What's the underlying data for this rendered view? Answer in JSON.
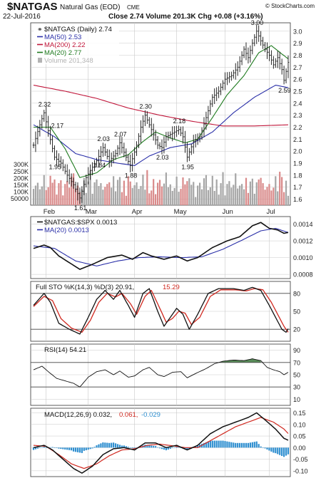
{
  "header": {
    "symbol": "$NATGAS",
    "name": "Natural Gas (EOD)",
    "exchange": "CME",
    "watermark": "© StockCharts.com",
    "date": "22-Jul-2016",
    "quote": "Close 2.74  Volume 201.3K  Chg +0.08 (+3.16%)"
  },
  "colors": {
    "price": "#111111",
    "ma50": "#2a2fa8",
    "ma200": "#c0163a",
    "ma20": "#1e7a1e",
    "volume": "#b3b3b3",
    "stoK": "#111111",
    "stoD": "#d0281f",
    "rsi": "#111111",
    "rsiFill": "#2f6f2f",
    "macd": "#111111",
    "signal": "#d0281f",
    "hist": "#2f8fd0",
    "grid": "#c8c8c8",
    "axisText": "#222222",
    "background": "#ffffff"
  },
  "chart_data": [
    {
      "type": "line",
      "panel": "price",
      "legend": [
        {
          "label": "$NATGAS (Daily) 2.74",
          "color": "#111111"
        },
        {
          "label": "MA(50) 2.53",
          "color": "#2a2fa8"
        },
        {
          "label": "MA(200) 2.22",
          "color": "#c0163a"
        },
        {
          "label": "MA(20) 2.77",
          "color": "#1e7a1e"
        },
        {
          "label": "Volume 201,348",
          "color": "#b3b3b3"
        }
      ],
      "x_labels": [
        "Feb",
        "Mar",
        "Apr",
        "May",
        "Jun",
        "Jul"
      ],
      "x_label_positions": [
        6,
        26,
        48,
        68,
        91,
        112
      ],
      "n": 122,
      "y_ticks": [
        1.6,
        1.7,
        1.8,
        1.9,
        2.0,
        2.1,
        2.2,
        2.3,
        2.4,
        2.5,
        2.6,
        2.7,
        2.8,
        2.9,
        3.0
      ],
      "ylim": [
        1.55,
        3.07
      ],
      "volume_ticks": [
        "300K",
        "250K",
        "200K",
        "150K",
        "100K",
        "50000"
      ],
      "volume_tick_values": [
        300000,
        250000,
        200000,
        150000,
        100000,
        50000
      ],
      "volume_max": 330000,
      "price_keypoints": [
        [
          0,
          2.05
        ],
        [
          3,
          2.22
        ],
        [
          5,
          2.32
        ],
        [
          7,
          2.17
        ],
        [
          10,
          1.95
        ],
        [
          13,
          1.9
        ],
        [
          16,
          1.8
        ],
        [
          19,
          1.72
        ],
        [
          22,
          1.61
        ],
        [
          25,
          1.78
        ],
        [
          27,
          1.84
        ],
        [
          30,
          1.92
        ],
        [
          33,
          2.03
        ],
        [
          36,
          1.92
        ],
        [
          39,
          1.98
        ],
        [
          41,
          2.07
        ],
        [
          44,
          1.95
        ],
        [
          46,
          1.88
        ],
        [
          49,
          2.05
        ],
        [
          51,
          2.2
        ],
        [
          53,
          2.3
        ],
        [
          56,
          2.18
        ],
        [
          59,
          2.05
        ],
        [
          61,
          2.03
        ],
        [
          63,
          2.12
        ],
        [
          66,
          2.15
        ],
        [
          69,
          2.18
        ],
        [
          71,
          2.12
        ],
        [
          73,
          1.95
        ],
        [
          76,
          2.08
        ],
        [
          79,
          2.12
        ],
        [
          82,
          2.28
        ],
        [
          85,
          2.45
        ],
        [
          88,
          2.5
        ],
        [
          91,
          2.6
        ],
        [
          94,
          2.63
        ],
        [
          97,
          2.7
        ],
        [
          100,
          2.85
        ],
        [
          102,
          2.78
        ],
        [
          104,
          2.9
        ],
        [
          106,
          3.0
        ],
        [
          108,
          2.92
        ],
        [
          110,
          2.85
        ],
        [
          112,
          2.8
        ],
        [
          114,
          2.72
        ],
        [
          116,
          2.78
        ],
        [
          118,
          2.68
        ],
        [
          119,
          2.59
        ],
        [
          121,
          2.74
        ]
      ],
      "ma50_keypoints": [
        [
          0,
          2.22
        ],
        [
          10,
          2.12
        ],
        [
          20,
          1.98
        ],
        [
          30,
          1.93
        ],
        [
          40,
          1.9
        ],
        [
          48,
          1.88
        ],
        [
          55,
          1.96
        ],
        [
          65,
          2.03
        ],
        [
          75,
          2.06
        ],
        [
          85,
          2.16
        ],
        [
          95,
          2.32
        ],
        [
          105,
          2.45
        ],
        [
          115,
          2.55
        ],
        [
          121,
          2.53
        ]
      ],
      "ma200_keypoints": [
        [
          0,
          2.55
        ],
        [
          15,
          2.5
        ],
        [
          30,
          2.44
        ],
        [
          45,
          2.36
        ],
        [
          60,
          2.3
        ],
        [
          75,
          2.25
        ],
        [
          90,
          2.21
        ],
        [
          105,
          2.21
        ],
        [
          121,
          2.22
        ]
      ],
      "ma20_keypoints": [
        [
          0,
          2.2
        ],
        [
          8,
          2.2
        ],
        [
          15,
          2.02
        ],
        [
          22,
          1.78
        ],
        [
          30,
          1.82
        ],
        [
          38,
          1.93
        ],
        [
          45,
          1.97
        ],
        [
          52,
          2.08
        ],
        [
          58,
          2.16
        ],
        [
          65,
          2.11
        ],
        [
          72,
          2.07
        ],
        [
          78,
          2.1
        ],
        [
          85,
          2.28
        ],
        [
          92,
          2.47
        ],
        [
          100,
          2.63
        ],
        [
          107,
          2.82
        ],
        [
          113,
          2.88
        ],
        [
          118,
          2.81
        ],
        [
          121,
          2.77
        ]
      ],
      "annotations": [
        {
          "i": 5,
          "text": "2.32",
          "pos": "above"
        },
        {
          "i": 7,
          "text": "2.17",
          "pos": "right"
        },
        {
          "i": 10,
          "text": "1.95",
          "pos": "below"
        },
        {
          "i": 22,
          "text": "1.61",
          "pos": "below"
        },
        {
          "i": 27,
          "text": "1.84",
          "pos": "right"
        },
        {
          "i": 33,
          "text": "2.03",
          "pos": "above"
        },
        {
          "i": 41,
          "text": "2.07",
          "pos": "above"
        },
        {
          "i": 46,
          "text": "1.88",
          "pos": "below"
        },
        {
          "i": 53,
          "text": "2.30",
          "pos": "above"
        },
        {
          "i": 61,
          "text": "2.03",
          "pos": "below"
        },
        {
          "i": 69,
          "text": "2.18",
          "pos": "above"
        },
        {
          "i": 73,
          "text": "1.95",
          "pos": "below"
        },
        {
          "i": 106,
          "text": "3.00",
          "pos": "above"
        },
        {
          "i": 119,
          "text": "2.59",
          "pos": "below"
        }
      ],
      "title": "$NATGAS (Daily)"
    },
    {
      "type": "line",
      "panel": "ratio",
      "legend": [
        {
          "label": "$NATGAS:$SPX 0.0013",
          "color": "#111111"
        },
        {
          "label": "MA(20) 0.0013",
          "color": "#2a2fa8"
        }
      ],
      "y_ticks": [
        0.0008,
        0.001,
        0.0012,
        0.0014
      ],
      "y_tick_labels": [
        "0.0008",
        "0.0010",
        "0.0012",
        "0.0014"
      ],
      "ylim": [
        0.00075,
        0.00149
      ],
      "line_keypoints": [
        [
          0,
          0.00111
        ],
        [
          5,
          0.00115
        ],
        [
          8,
          0.00112
        ],
        [
          12,
          0.00102
        ],
        [
          17,
          0.00094
        ],
        [
          22,
          0.00086
        ],
        [
          28,
          0.00092
        ],
        [
          35,
          0.001
        ],
        [
          42,
          0.00103
        ],
        [
          47,
          0.00098
        ],
        [
          52,
          0.00106
        ],
        [
          56,
          0.00102
        ],
        [
          62,
          0.00098
        ],
        [
          68,
          0.00102
        ],
        [
          73,
          0.00096
        ],
        [
          78,
          0.001
        ],
        [
          85,
          0.00112
        ],
        [
          92,
          0.0012
        ],
        [
          98,
          0.00125
        ],
        [
          104,
          0.00138
        ],
        [
          108,
          0.00142
        ],
        [
          112,
          0.00135
        ],
        [
          116,
          0.00133
        ],
        [
          119,
          0.00129
        ],
        [
          121,
          0.0013
        ]
      ],
      "ma_keypoints": [
        [
          0,
          0.00114
        ],
        [
          10,
          0.00111
        ],
        [
          20,
          0.00096
        ],
        [
          30,
          0.0009
        ],
        [
          40,
          0.00096
        ],
        [
          50,
          0.001
        ],
        [
          60,
          0.00101
        ],
        [
          70,
          0.001
        ],
        [
          80,
          0.00101
        ],
        [
          90,
          0.0011
        ],
        [
          100,
          0.00122
        ],
        [
          108,
          0.00132
        ],
        [
          115,
          0.00135
        ],
        [
          121,
          0.0013
        ]
      ]
    },
    {
      "type": "line",
      "panel": "stochastic",
      "legend": [
        {
          "label": "Full STO %K(14,3) %D(3) 20.91,",
          "color": "#111111"
        },
        {
          "label": "15.29",
          "color": "#d0281f"
        }
      ],
      "y_ticks": [
        20,
        50,
        80
      ],
      "ylim": [
        0,
        100
      ],
      "k_keypoints": [
        [
          0,
          60
        ],
        [
          5,
          80
        ],
        [
          8,
          65
        ],
        [
          12,
          30
        ],
        [
          17,
          20
        ],
        [
          22,
          12
        ],
        [
          26,
          40
        ],
        [
          30,
          70
        ],
        [
          34,
          85
        ],
        [
          38,
          70
        ],
        [
          41,
          85
        ],
        [
          45,
          60
        ],
        [
          48,
          40
        ],
        [
          52,
          80
        ],
        [
          55,
          88
        ],
        [
          59,
          50
        ],
        [
          62,
          25
        ],
        [
          65,
          40
        ],
        [
          68,
          55
        ],
        [
          71,
          45
        ],
        [
          74,
          20
        ],
        [
          78,
          45
        ],
        [
          83,
          80
        ],
        [
          88,
          88
        ],
        [
          95,
          88
        ],
        [
          100,
          85
        ],
        [
          104,
          90
        ],
        [
          108,
          85
        ],
        [
          112,
          60
        ],
        [
          115,
          40
        ],
        [
          118,
          20
        ],
        [
          120,
          15
        ],
        [
          121,
          21
        ]
      ],
      "d_keypoints": [
        [
          0,
          58
        ],
        [
          5,
          75
        ],
        [
          9,
          68
        ],
        [
          13,
          38
        ],
        [
          18,
          22
        ],
        [
          23,
          15
        ],
        [
          27,
          35
        ],
        [
          31,
          65
        ],
        [
          35,
          80
        ],
        [
          39,
          74
        ],
        [
          42,
          80
        ],
        [
          46,
          63
        ],
        [
          49,
          45
        ],
        [
          53,
          75
        ],
        [
          56,
          85
        ],
        [
          60,
          55
        ],
        [
          63,
          32
        ],
        [
          66,
          38
        ],
        [
          69,
          50
        ],
        [
          72,
          47
        ],
        [
          75,
          28
        ],
        [
          79,
          40
        ],
        [
          84,
          75
        ],
        [
          89,
          86
        ],
        [
          96,
          86
        ],
        [
          101,
          84
        ],
        [
          105,
          88
        ],
        [
          109,
          86
        ],
        [
          113,
          65
        ],
        [
          116,
          45
        ],
        [
          119,
          25
        ],
        [
          121,
          15
        ]
      ]
    },
    {
      "type": "line",
      "panel": "rsi",
      "legend": [
        {
          "label": "RSI(14) 54.21",
          "color": "#111111"
        }
      ],
      "y_ticks": [
        10,
        30,
        50,
        70,
        90
      ],
      "ylim": [
        0,
        100
      ],
      "line_keypoints": [
        [
          0,
          58
        ],
        [
          4,
          64
        ],
        [
          7,
          55
        ],
        [
          11,
          44
        ],
        [
          15,
          40
        ],
        [
          19,
          36
        ],
        [
          22,
          30
        ],
        [
          26,
          46
        ],
        [
          30,
          55
        ],
        [
          34,
          58
        ],
        [
          38,
          50
        ],
        [
          41,
          56
        ],
        [
          45,
          46
        ],
        [
          48,
          48
        ],
        [
          52,
          58
        ],
        [
          55,
          62
        ],
        [
          59,
          50
        ],
        [
          62,
          47
        ],
        [
          66,
          54
        ],
        [
          70,
          55
        ],
        [
          73,
          45
        ],
        [
          77,
          52
        ],
        [
          82,
          60
        ],
        [
          86,
          68
        ],
        [
          90,
          72
        ],
        [
          95,
          74
        ],
        [
          100,
          73
        ],
        [
          104,
          76
        ],
        [
          108,
          73
        ],
        [
          111,
          62
        ],
        [
          114,
          58
        ],
        [
          117,
          55
        ],
        [
          119,
          50
        ],
        [
          121,
          54
        ]
      ]
    },
    {
      "type": "line",
      "panel": "macd",
      "legend": [
        {
          "label": "MACD(12,26,9) 0.032,",
          "color": "#111111"
        },
        {
          "label": "0.061,",
          "color": "#d0281f"
        },
        {
          "label": "-0.029",
          "color": "#2f8fd0"
        }
      ],
      "y_ticks": [
        -0.1,
        -0.05,
        0,
        0.05,
        0.1,
        0.15
      ],
      "y_tick_labels": [
        "-0.10",
        "-0.05",
        "0.00",
        "0.05",
        "0.10",
        "0.15"
      ],
      "ylim": [
        -0.125,
        0.17
      ],
      "macd_keypoints": [
        [
          0,
          0.0
        ],
        [
          5,
          0.01
        ],
        [
          9,
          -0.01
        ],
        [
          14,
          -0.05
        ],
        [
          19,
          -0.09
        ],
        [
          23,
          -0.11
        ],
        [
          28,
          -0.08
        ],
        [
          33,
          -0.03
        ],
        [
          38,
          -0.005
        ],
        [
          43,
          0.0
        ],
        [
          48,
          -0.01
        ],
        [
          53,
          0.02
        ],
        [
          58,
          0.02
        ],
        [
          63,
          0.0
        ],
        [
          68,
          0.01
        ],
        [
          73,
          -0.01
        ],
        [
          78,
          0.01
        ],
        [
          84,
          0.06
        ],
        [
          90,
          0.09
        ],
        [
          96,
          0.11
        ],
        [
          102,
          0.13
        ],
        [
          106,
          0.15
        ],
        [
          110,
          0.12
        ],
        [
          115,
          0.08
        ],
        [
          119,
          0.04
        ],
        [
          121,
          0.032
        ]
      ],
      "signal_keypoints": [
        [
          0,
          0.01
        ],
        [
          6,
          0.005
        ],
        [
          12,
          -0.03
        ],
        [
          18,
          -0.07
        ],
        [
          24,
          -0.09
        ],
        [
          30,
          -0.07
        ],
        [
          36,
          -0.035
        ],
        [
          42,
          -0.01
        ],
        [
          48,
          -0.005
        ],
        [
          54,
          0.01
        ],
        [
          60,
          0.015
        ],
        [
          66,
          0.008
        ],
        [
          72,
          0.0
        ],
        [
          78,
          0.0
        ],
        [
          84,
          0.03
        ],
        [
          90,
          0.06
        ],
        [
          96,
          0.09
        ],
        [
          102,
          0.11
        ],
        [
          108,
          0.13
        ],
        [
          114,
          0.11
        ],
        [
          119,
          0.08
        ],
        [
          121,
          0.061
        ]
      ]
    }
  ]
}
